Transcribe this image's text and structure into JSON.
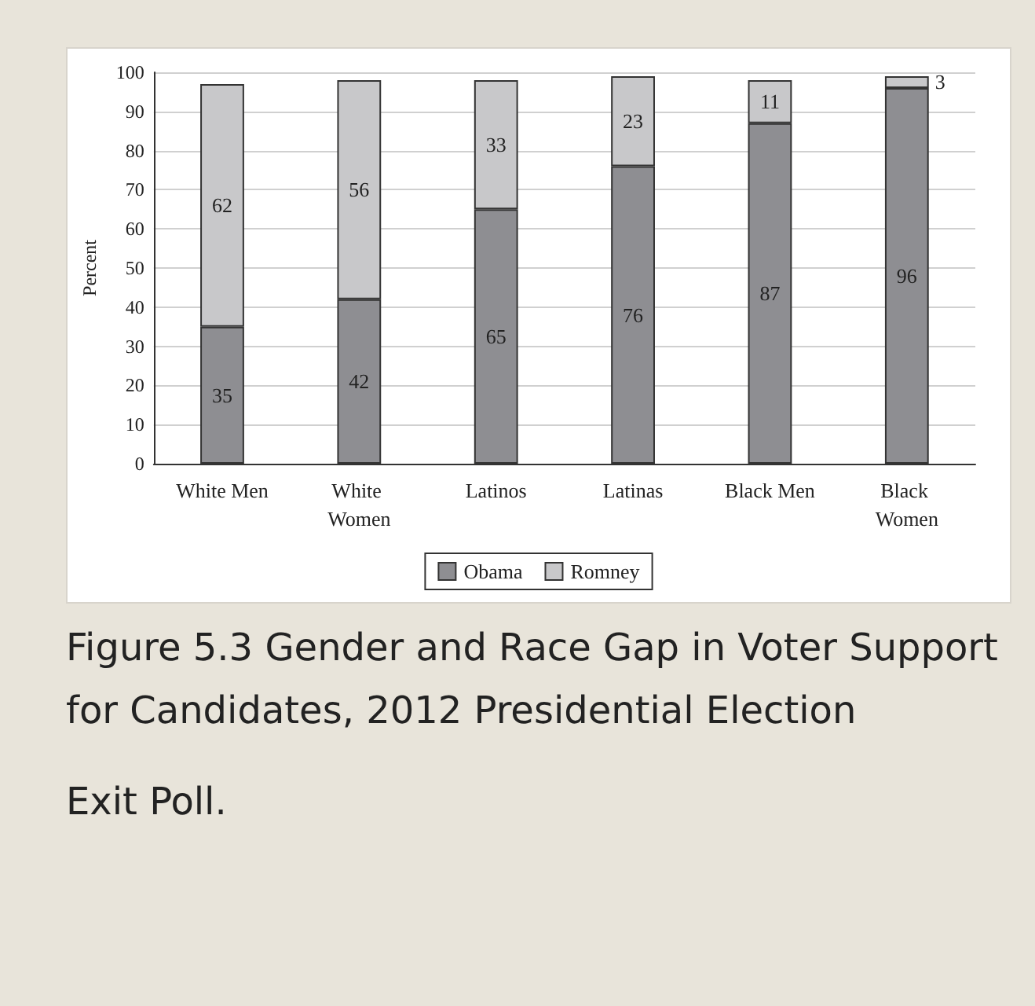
{
  "chart_data": {
    "type": "bar",
    "stacked": true,
    "title": "Figure 5.3 Gender and Race Gap in Voter Support for Candidates, 2012 Presidential Election",
    "annotations": [
      "Exit Poll."
    ],
    "ylabel": "Percent",
    "categories": [
      "White Men",
      "White Women",
      "Latinos",
      "Latinas",
      "Black Men",
      "Black Women"
    ],
    "series": [
      {
        "name": "Obama",
        "color": "#8e8e92",
        "values": [
          35,
          42,
          65,
          76,
          87,
          96
        ]
      },
      {
        "name": "Romney",
        "color": "#c8c8ca",
        "values": [
          62,
          56,
          33,
          23,
          11,
          3
        ]
      }
    ],
    "ylim": [
      0,
      100
    ],
    "yticks": [
      0,
      10,
      20,
      30,
      40,
      50,
      60,
      70,
      80,
      90,
      100
    ],
    "grid": "y",
    "legend": "bottom",
    "data_labels": true
  }
}
